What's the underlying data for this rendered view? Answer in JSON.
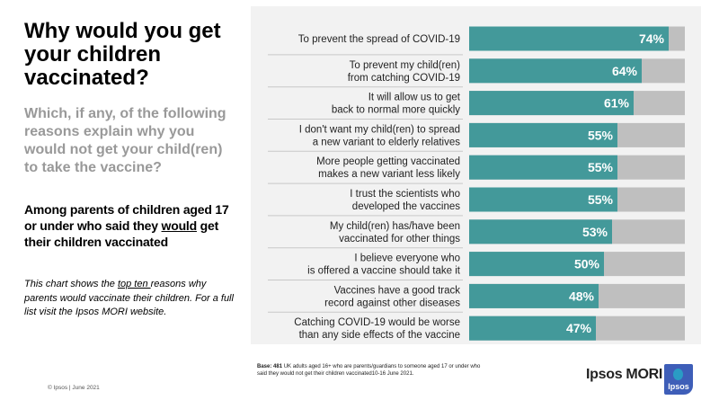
{
  "title": "Why would you get your children vaccinated?",
  "question": "Which, if any, of the following reasons explain why you would not get your child(ren) to take the vaccine?",
  "among": {
    "before": "Among parents of children aged 17 or under who said they ",
    "underlined": "would",
    "after": " get their children vaccinated"
  },
  "note": {
    "before": "This chart shows the ",
    "underlined": "top ten ",
    "after": "reasons why parents would vaccinate their children. For a full list visit the Ipsos MORI website."
  },
  "copyright": "© Ipsos | June 2021",
  "base": {
    "label": "Base:",
    "count": "481",
    "text": " UK adults aged 16+ who are parents/guardians to someone aged 17 or under who said they would not get their children vaccinated10-16 June 2021."
  },
  "brand": {
    "name": "Ipsos MORI",
    "logo_text": "Ipsos"
  },
  "colors": {
    "bar": "#43999a",
    "track": "#bfbfbf",
    "panel": "#f2f2f2"
  },
  "chart_data": {
    "type": "bar",
    "orientation": "horizontal",
    "xlim": [
      0,
      80
    ],
    "grid": false,
    "categories": [
      [
        "To prevent the spread of COVID-19"
      ],
      [
        "To prevent my child(ren)",
        "from catching COVID-19"
      ],
      [
        "It will allow us to get",
        "back to normal more quickly"
      ],
      [
        "I don't want my child(ren) to spread",
        "a new variant to elderly relatives"
      ],
      [
        "More people getting vaccinated",
        "makes a new variant less likely"
      ],
      [
        "I trust the scientists who",
        "developed the vaccines"
      ],
      [
        "My child(ren) has/have been",
        "vaccinated for other things"
      ],
      [
        "I believe everyone who",
        "is offered a vaccine should take it"
      ],
      [
        "Vaccines have a good track",
        "record against other diseases"
      ],
      [
        "Catching COVID-19 would be worse",
        "than any side effects of the vaccine"
      ]
    ],
    "values": [
      74,
      64,
      61,
      55,
      55,
      55,
      53,
      50,
      48,
      47
    ],
    "data_labels": [
      "74%",
      "64%",
      "61%",
      "55%",
      "55%",
      "55%",
      "53%",
      "50%",
      "48%",
      "47%"
    ]
  }
}
